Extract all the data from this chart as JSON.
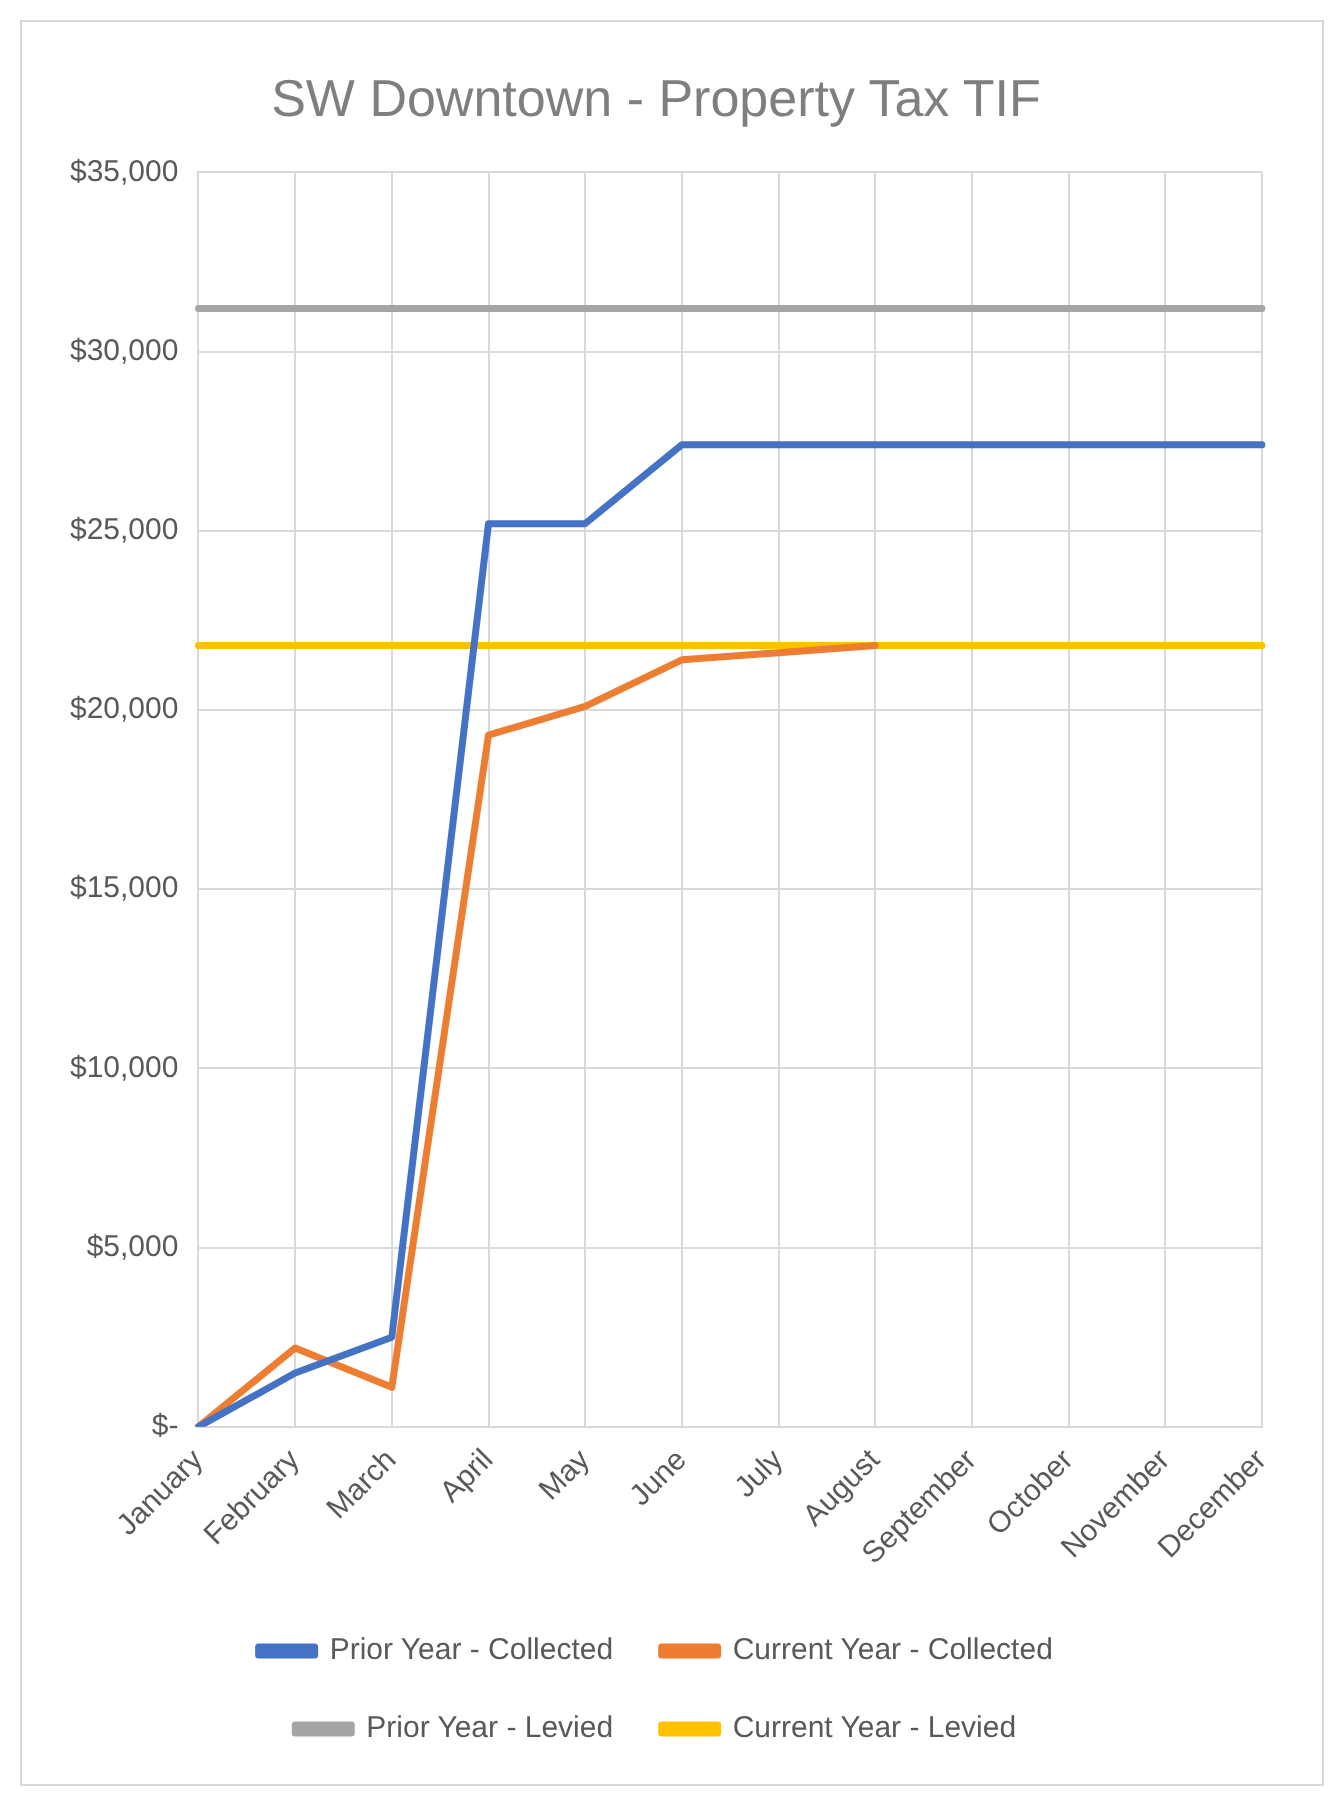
{
  "chart_data": {
    "type": "line",
    "title": "SW Downtown - Property Tax TIF",
    "categories": [
      "January",
      "February",
      "March",
      "April",
      "May",
      "June",
      "July",
      "August",
      "September",
      "October",
      "November",
      "December"
    ],
    "series": [
      {
        "name": "Prior Year - Collected",
        "color": "#4472c4",
        "values": [
          0,
          1500,
          2500,
          25200,
          25200,
          27400,
          27400,
          27400,
          27400,
          27400,
          27400,
          27400
        ]
      },
      {
        "name": "Current Year - Collected",
        "color": "#ed7d31",
        "values": [
          0,
          2200,
          1100,
          19300,
          20100,
          21400,
          21600,
          21800,
          null,
          null,
          null,
          null
        ]
      },
      {
        "name": "Prior Year - Levied",
        "color": "#a5a5a5",
        "values": [
          31200,
          31200,
          31200,
          31200,
          31200,
          31200,
          31200,
          31200,
          31200,
          31200,
          31200,
          31200
        ]
      },
      {
        "name": "Current Year - Levied",
        "color": "#ffc000",
        "values": [
          21800,
          21800,
          21800,
          21800,
          21800,
          21800,
          21800,
          21800,
          21800,
          21800,
          21800,
          21800
        ]
      }
    ],
    "ylim": [
      0,
      35000
    ],
    "yticks": [
      {
        "value": 0,
        "label": "$-"
      },
      {
        "value": 5000,
        "label": "$5,000"
      },
      {
        "value": 10000,
        "label": "$10,000"
      },
      {
        "value": 15000,
        "label": "$15,000"
      },
      {
        "value": 20000,
        "label": "$20,000"
      },
      {
        "value": 25000,
        "label": "$25,000"
      },
      {
        "value": 30000,
        "label": "$30,000"
      },
      {
        "value": 35000,
        "label": "$35,000"
      }
    ],
    "grid": true,
    "legend": "bottom",
    "marker": "none",
    "line_style": "solid"
  }
}
